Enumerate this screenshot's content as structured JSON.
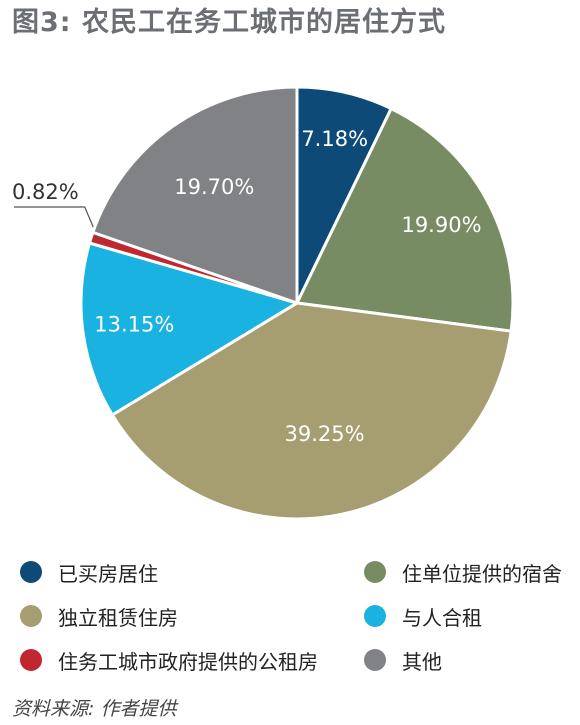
{
  "title": "图3: 农民工在务工城市的居住方式",
  "source": "资料来源: 作者提供",
  "chart_data": {
    "type": "pie",
    "title": "图3: 农民工在务工城市的居住方式",
    "slices": [
      {
        "name": "已买房居住",
        "value": 7.18,
        "label": "7.18%",
        "color": "#0d4a78"
      },
      {
        "name": "住单位提供的宿舍",
        "value": 19.9,
        "label": "19.90%",
        "color": "#778c62"
      },
      {
        "name": "独立租赁住房",
        "value": 39.25,
        "label": "39.25%",
        "color": "#a69d70"
      },
      {
        "name": "与人合租",
        "value": 13.15,
        "label": "13.15%",
        "color": "#1ab2e0"
      },
      {
        "name": "住务工城市政府提供的公租房",
        "value": 0.82,
        "label": "0.82%",
        "color": "#c0282f"
      },
      {
        "name": "其他",
        "value": 19.7,
        "label": "19.70%",
        "color": "#808285"
      }
    ],
    "start": "12 o'clock",
    "direction": "clockwise",
    "legend_position": "bottom"
  },
  "legend": [
    {
      "label": "已买房居住",
      "color": "#0d4a78"
    },
    {
      "label": "住单位提供的宿舍",
      "color": "#778c62"
    },
    {
      "label": "独立租赁住房",
      "color": "#a69d70"
    },
    {
      "label": "与人合租",
      "color": "#1ab2e0"
    },
    {
      "label": "住务工城市政府提供的公租房",
      "color": "#c0282f"
    },
    {
      "label": "其他",
      "color": "#808285"
    }
  ]
}
